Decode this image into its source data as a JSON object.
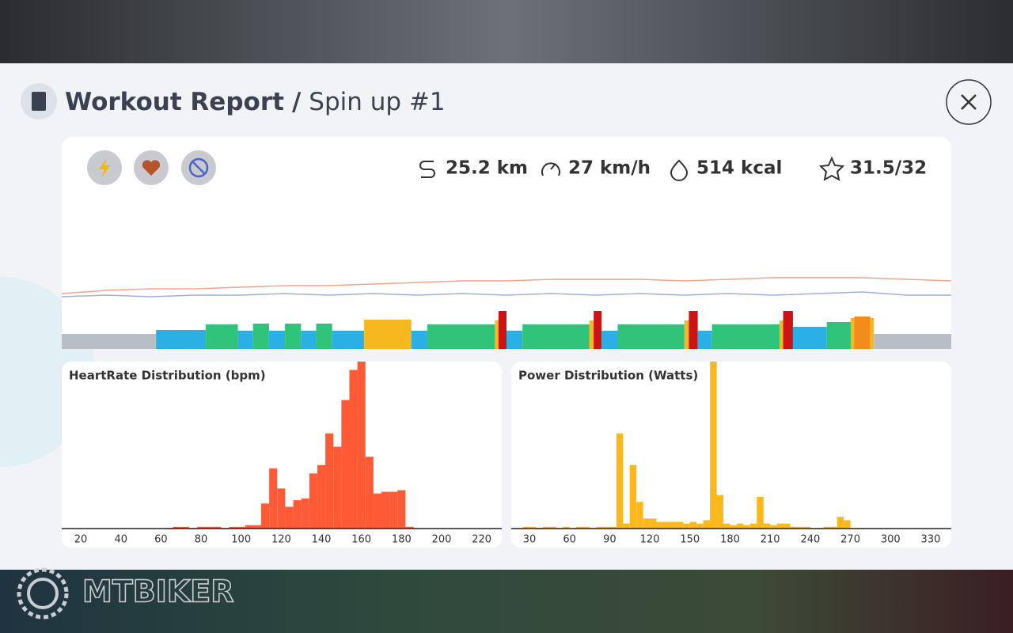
{
  "header": {
    "title": "Workout Report",
    "separator": "/",
    "subtitle": "Spin up #1"
  },
  "stats": {
    "distance": "25.2 km",
    "speed": "27 km/h",
    "calories": "514 kcal",
    "score": "31.5/32"
  },
  "watermark": "MTBIKER",
  "chart_data": [
    {
      "type": "timeline",
      "xlim": [
        0,
        100
      ],
      "ylim": [
        0,
        100
      ],
      "x": [
        0,
        5,
        10,
        15,
        20,
        25,
        30,
        35,
        40,
        45,
        50,
        55,
        60,
        65,
        70,
        75,
        80,
        85,
        90,
        95,
        100
      ],
      "series": [
        {
          "color": "#f4a38d",
          "values": [
            35,
            37,
            38,
            38,
            39,
            40,
            40,
            41,
            42,
            43,
            43,
            44,
            44,
            44,
            43,
            44,
            45,
            45,
            45,
            44,
            43
          ]
        },
        {
          "color": "#9fb0e0",
          "values": [
            33,
            34,
            33,
            34,
            34,
            35,
            34,
            35,
            34,
            35,
            34,
            35,
            34,
            35,
            34,
            35,
            34,
            35,
            36,
            34,
            34
          ]
        }
      ],
      "segments": [
        {
          "start": 0,
          "end": 10.6,
          "value": 9.5,
          "color": "#b8bdc6"
        },
        {
          "start": 10.6,
          "end": 16.2,
          "value": 12,
          "color": "#2bb0e6"
        },
        {
          "start": 16.2,
          "end": 19.8,
          "value": 15.5,
          "color": "#2fc47a"
        },
        {
          "start": 19.8,
          "end": 21.5,
          "value": 11.5,
          "color": "#2bb0e6"
        },
        {
          "start": 21.5,
          "end": 23.3,
          "value": 16,
          "color": "#2fc47a"
        },
        {
          "start": 23.3,
          "end": 25.1,
          "value": 11.5,
          "color": "#2bb0e6"
        },
        {
          "start": 25.1,
          "end": 26.9,
          "value": 16,
          "color": "#2fc47a"
        },
        {
          "start": 26.9,
          "end": 28.6,
          "value": 11.5,
          "color": "#2bb0e6"
        },
        {
          "start": 28.6,
          "end": 30.4,
          "value": 16,
          "color": "#2fc47a"
        },
        {
          "start": 30.4,
          "end": 34.0,
          "value": 11.5,
          "color": "#2bb0e6"
        },
        {
          "start": 34.0,
          "end": 39.3,
          "value": 18.5,
          "color": "#f7b81f"
        },
        {
          "start": 39.3,
          "end": 41.1,
          "value": 11.5,
          "color": "#2bb0e6"
        },
        {
          "start": 41.1,
          "end": 48.7,
          "value": 15.5,
          "color": "#2fc47a"
        },
        {
          "start": 48.7,
          "end": 49.1,
          "value": 18,
          "color": "#f7b81f"
        },
        {
          "start": 49.1,
          "end": 50.0,
          "value": 24,
          "color": "#cc1414"
        },
        {
          "start": 50.0,
          "end": 51.8,
          "value": 11.5,
          "color": "#2bb0e6"
        },
        {
          "start": 51.8,
          "end": 59.3,
          "value": 15.5,
          "color": "#2fc47a"
        },
        {
          "start": 59.3,
          "end": 59.8,
          "value": 18,
          "color": "#f7b81f"
        },
        {
          "start": 59.8,
          "end": 60.7,
          "value": 24,
          "color": "#cc1414"
        },
        {
          "start": 60.7,
          "end": 62.5,
          "value": 11.5,
          "color": "#2bb0e6"
        },
        {
          "start": 62.5,
          "end": 70.0,
          "value": 15.5,
          "color": "#2fc47a"
        },
        {
          "start": 70.0,
          "end": 70.5,
          "value": 18,
          "color": "#f7b81f"
        },
        {
          "start": 70.5,
          "end": 71.5,
          "value": 24,
          "color": "#cc1414"
        },
        {
          "start": 71.5,
          "end": 73.1,
          "value": 11.5,
          "color": "#2bb0e6"
        },
        {
          "start": 73.1,
          "end": 80.7,
          "value": 15.5,
          "color": "#2fc47a"
        },
        {
          "start": 80.7,
          "end": 81.1,
          "value": 18,
          "color": "#f7b81f"
        },
        {
          "start": 81.1,
          "end": 82.2,
          "value": 24,
          "color": "#cc1414"
        },
        {
          "start": 82.2,
          "end": 86.0,
          "value": 14,
          "color": "#2bb0e6"
        },
        {
          "start": 86.0,
          "end": 88.7,
          "value": 17,
          "color": "#2fc47a"
        },
        {
          "start": 88.7,
          "end": 89.1,
          "value": 19.5,
          "color": "#f7b81f"
        },
        {
          "start": 89.1,
          "end": 90.9,
          "value": 20.5,
          "color": "#f28c1c"
        },
        {
          "start": 90.9,
          "end": 91.3,
          "value": 19.5,
          "color": "#f7b81f"
        },
        {
          "start": 91.3,
          "end": 100,
          "value": 9.5,
          "color": "#b8bdc6"
        }
      ]
    },
    {
      "type": "histogram",
      "title": "HeartRate Distribution (bpm)",
      "color": "#ff5a36",
      "xlim": [
        10.5,
        230
      ],
      "ylim": [
        0,
        100
      ],
      "xticks": [
        20,
        40,
        60,
        80,
        100,
        120,
        140,
        160,
        180,
        200,
        220
      ],
      "bins": [
        62,
        66,
        70,
        74,
        78,
        82,
        86,
        90,
        94,
        98,
        102,
        106,
        110,
        114,
        118,
        122,
        126,
        130,
        134,
        138,
        142,
        146,
        150,
        154,
        158,
        162,
        166,
        170,
        174,
        178,
        182,
        186
      ],
      "values": [
        0,
        1,
        1,
        0,
        1,
        1,
        1,
        0,
        1,
        1,
        2,
        2,
        15,
        36,
        24,
        13,
        17,
        18,
        33,
        38,
        57,
        49,
        77,
        95,
        100,
        43,
        21,
        22,
        22,
        23,
        1
      ]
    },
    {
      "type": "histogram",
      "title": "Power Distribution (Watts)",
      "color": "#fbb81c",
      "xlim": [
        16.4,
        345.4
      ],
      "ylim": [
        0,
        100
      ],
      "xticks": [
        30,
        60,
        90,
        120,
        150,
        180,
        210,
        240,
        270,
        300,
        330
      ],
      "bins": [
        20,
        25,
        30,
        35,
        40,
        45,
        50,
        55,
        60,
        65,
        70,
        75,
        80,
        85,
        90,
        95,
        100,
        105,
        110,
        115,
        120,
        125,
        130,
        135,
        140,
        145,
        150,
        155,
        160,
        165,
        170,
        175,
        180,
        185,
        190,
        195,
        200,
        205,
        210,
        215,
        220,
        225,
        230,
        235,
        240,
        245,
        250,
        255,
        260,
        265,
        270,
        275,
        280
      ],
      "values": [
        0,
        1,
        1,
        0,
        1,
        1,
        0,
        1,
        0,
        1,
        1,
        0,
        1,
        1,
        1,
        57,
        3,
        38,
        16,
        6,
        6,
        4,
        4,
        4,
        4,
        3,
        4,
        3,
        5,
        100,
        20,
        3,
        2,
        3,
        2,
        3,
        19,
        3,
        2,
        3,
        3,
        1,
        1,
        1,
        0,
        0,
        1,
        1,
        7,
        5,
        0,
        0
      ]
    }
  ]
}
